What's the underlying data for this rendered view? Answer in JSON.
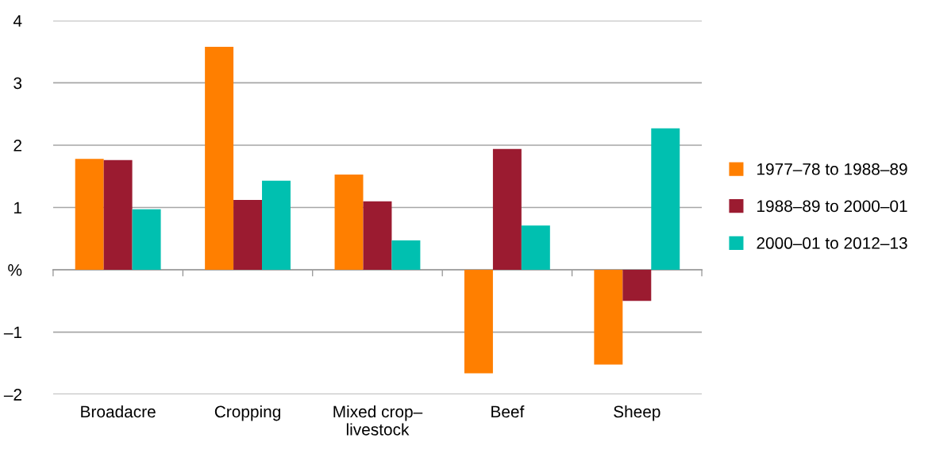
{
  "chart_data": {
    "type": "bar",
    "categories": [
      "Broadacre",
      "Cropping",
      "Mixed crop–\nlivestock",
      "Beef",
      "Sheep"
    ],
    "series": [
      {
        "name": "1977–78 to 1988–89",
        "color": "#ff7f00",
        "values": [
          1.78,
          3.58,
          1.53,
          -1.66,
          -1.52
        ]
      },
      {
        "name": "1988–89 to 2000–01",
        "color": "#9b1b30",
        "values": [
          1.76,
          1.12,
          1.1,
          1.94,
          -0.5
        ]
      },
      {
        "name": "2000–01 to 2012–13",
        "color": "#00c0b0",
        "values": [
          0.97,
          1.43,
          0.47,
          0.71,
          2.27
        ]
      }
    ],
    "ylim": [
      -2,
      4
    ],
    "yticks": [
      {
        "value": -2,
        "label": "–2"
      },
      {
        "value": -1,
        "label": "–1"
      },
      {
        "value": 0,
        "label": "%"
      },
      1,
      2,
      3,
      4
    ],
    "grid": "y",
    "legend": "right"
  }
}
